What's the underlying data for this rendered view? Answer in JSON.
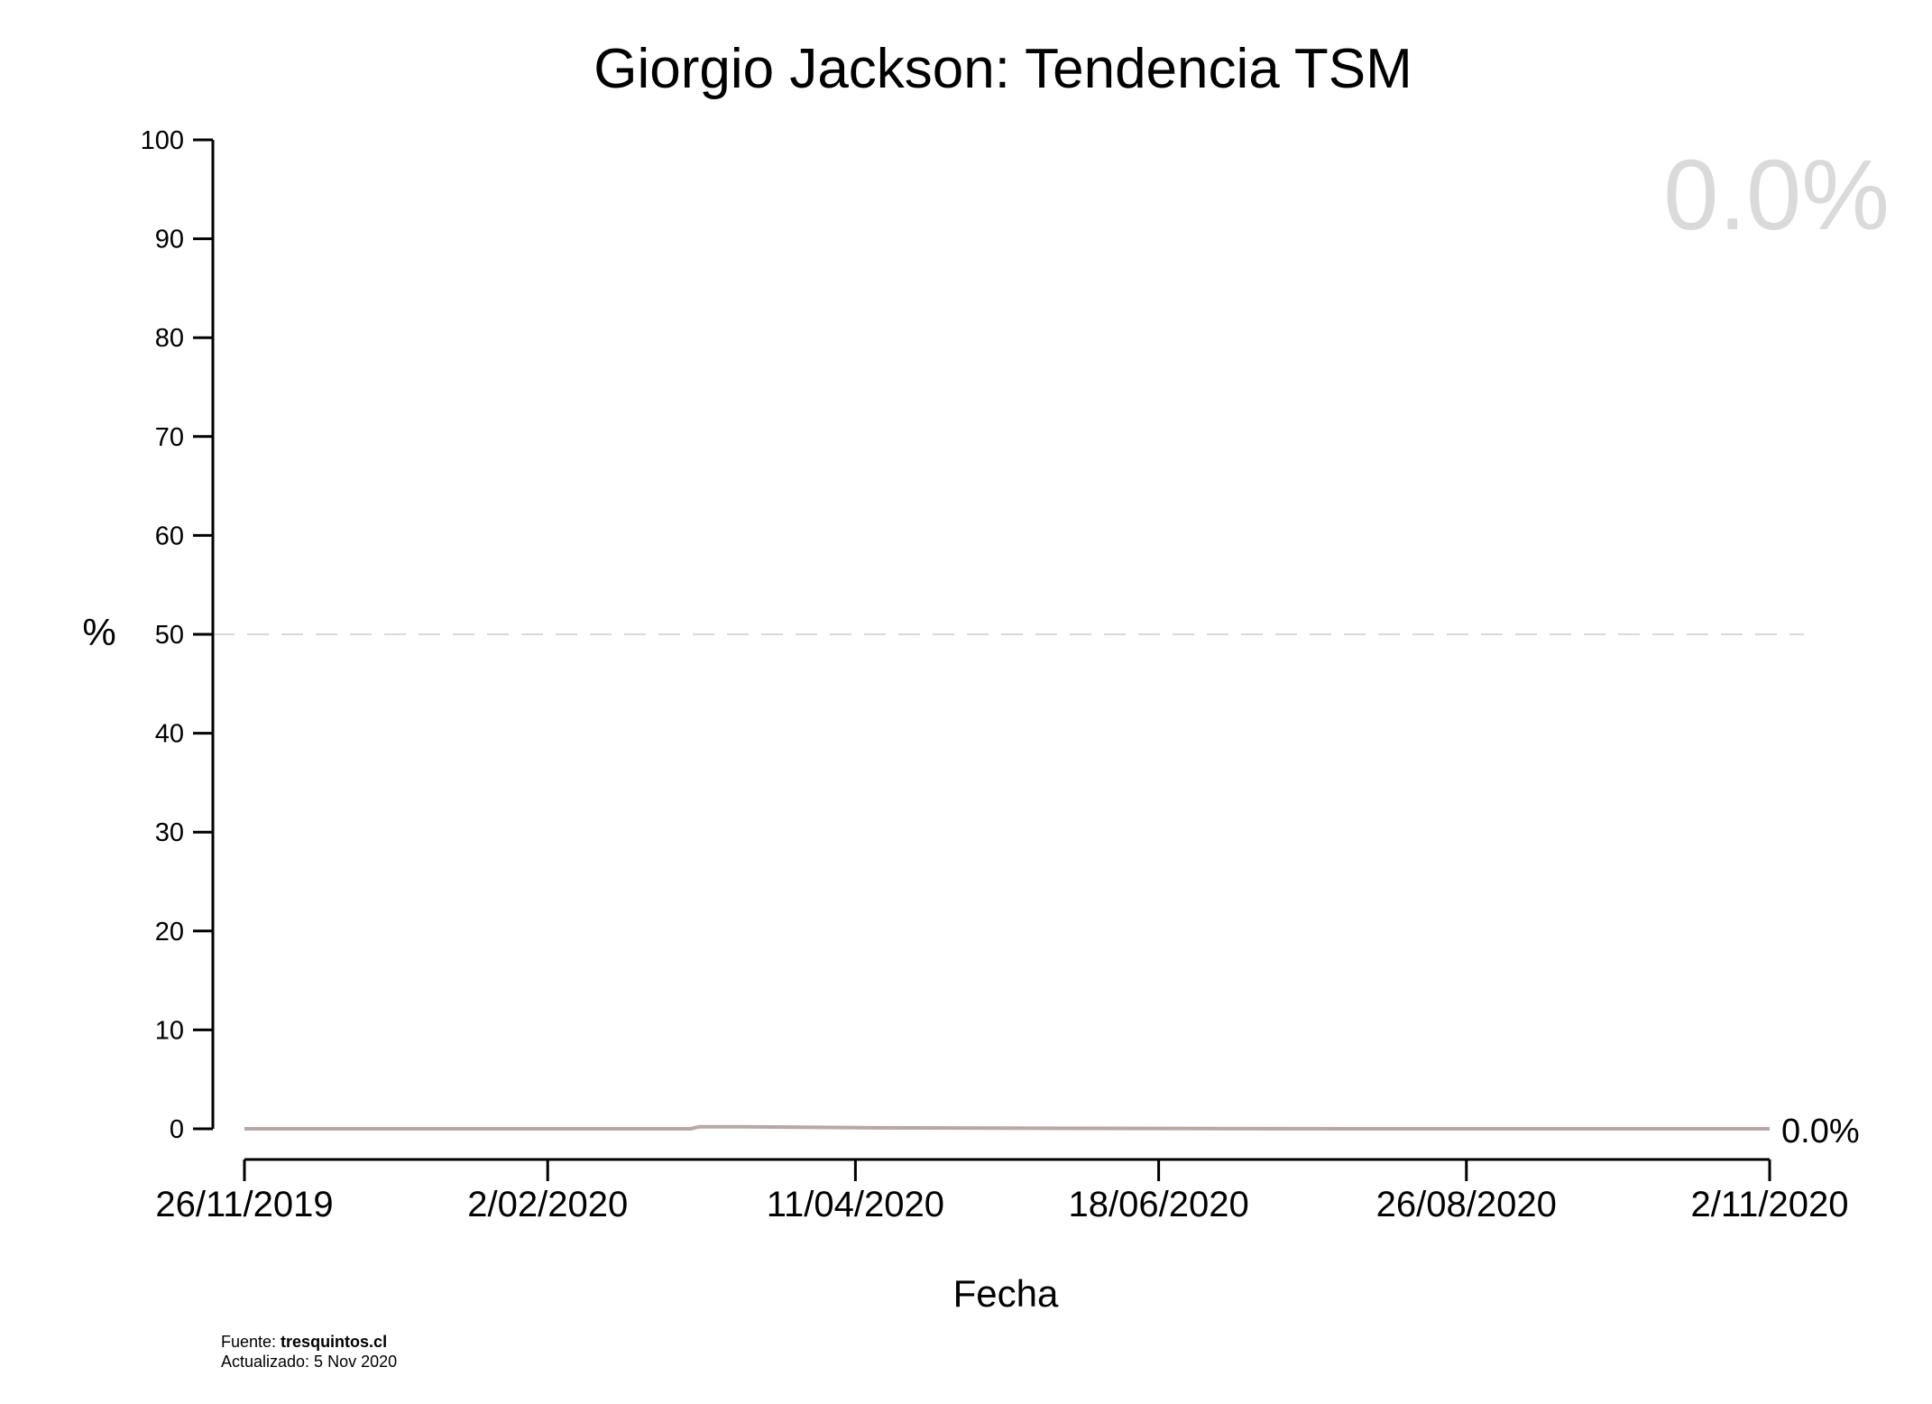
{
  "chart_data": {
    "type": "line",
    "title": "Giorgio Jackson: Tendencia TSM",
    "xlabel": "Fecha",
    "ylabel": "%",
    "ylim": [
      0,
      100
    ],
    "yticks": [
      "0",
      "10",
      "20",
      "30",
      "40",
      "50",
      "60",
      "70",
      "80",
      "90",
      "100"
    ],
    "xlim": [
      "2019-11-26",
      "2020-11-02"
    ],
    "xticks": [
      {
        "date": "2019-11-26",
        "label": "26/11/2019"
      },
      {
        "date": "2020-02-02",
        "label": "2/02/2020"
      },
      {
        "date": "2020-04-11",
        "label": "11/04/2020"
      },
      {
        "date": "2020-06-18",
        "label": "18/06/2020"
      },
      {
        "date": "2020-08-26",
        "label": "26/08/2020"
      },
      {
        "date": "2020-11-02",
        "label": "2/11/2020"
      }
    ],
    "reference_line": {
      "y": 50,
      "style": "dashed",
      "color": "#d9d9d9"
    },
    "series": [
      {
        "color": "#b9a7a7",
        "points": [
          {
            "x": "2019-11-26",
            "y": 0.0
          },
          {
            "x": "2020-01-15",
            "y": 0.0
          },
          {
            "x": "2020-03-05",
            "y": 0.0
          },
          {
            "x": "2020-03-07",
            "y": 0.2
          },
          {
            "x": "2020-03-17",
            "y": 0.2
          },
          {
            "x": "2020-04-15",
            "y": 0.1
          },
          {
            "x": "2020-06-01",
            "y": 0.05
          },
          {
            "x": "2020-08-01",
            "y": 0.0
          },
          {
            "x": "2020-11-02",
            "y": 0.0
          }
        ]
      }
    ],
    "current_value_label": "0.0%",
    "end_label": "0.0%",
    "big_label_color": "#dadada"
  },
  "footer": {
    "source_prefix": "Fuente: ",
    "source_name": "tresquintos.cl",
    "updated": "Actualizado: 5 Nov 2020"
  }
}
